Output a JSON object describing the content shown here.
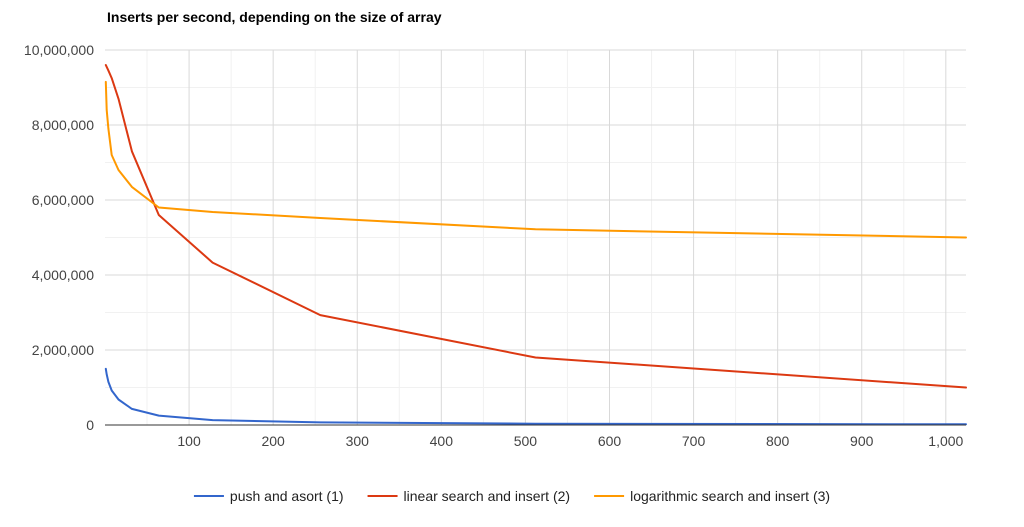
{
  "chart_data": {
    "type": "line",
    "title": "Inserts per second, depending on the size of array",
    "xlabel": "",
    "ylabel": "",
    "xlim": [
      0,
      1024
    ],
    "ylim": [
      0,
      10000000
    ],
    "x_ticks": [
      100,
      200,
      300,
      400,
      500,
      600,
      700,
      800,
      900,
      1000
    ],
    "x_tick_labels": [
      "100",
      "200",
      "300",
      "400",
      "500",
      "600",
      "700",
      "800",
      "900",
      "1,000"
    ],
    "y_ticks": [
      0,
      2000000,
      4000000,
      6000000,
      8000000,
      10000000
    ],
    "y_tick_labels": [
      "0",
      "2,000,000",
      "4,000,000",
      "6,000,000",
      "8,000,000",
      "10,000,000"
    ],
    "grid": true,
    "legend_position": "bottom",
    "x": [
      1,
      2,
      4,
      8,
      16,
      32,
      64,
      128,
      256,
      512,
      1024
    ],
    "series": [
      {
        "name": "push and asort (1)",
        "color": "#3366cc",
        "values": [
          1500000,
          1350000,
          1150000,
          920000,
          680000,
          430000,
          250000,
          130000,
          70000,
          35000,
          18000
        ]
      },
      {
        "name": "linear search and insert (2)",
        "color": "#dc3912",
        "values": [
          9600000,
          9550000,
          9450000,
          9250000,
          8700000,
          7300000,
          5600000,
          4330000,
          2930000,
          1800000,
          1000000
        ]
      },
      {
        "name": "logarithmic search and insert (3)",
        "color": "#ff9900",
        "values": [
          9150000,
          8400000,
          7900000,
          7200000,
          6800000,
          6350000,
          5800000,
          5680000,
          5520000,
          5220000,
          5000000
        ]
      }
    ]
  }
}
